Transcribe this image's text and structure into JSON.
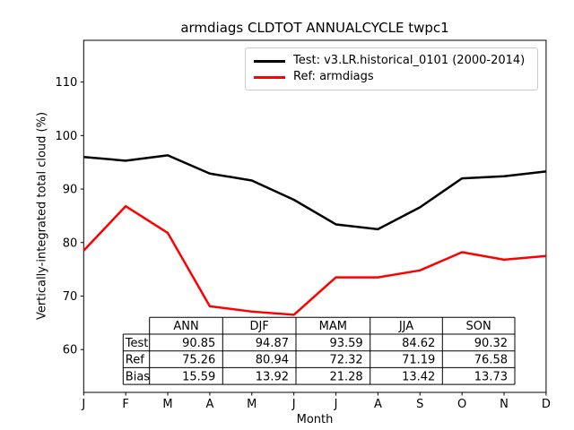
{
  "title": "armdiags CLDTOT ANNUALCYCLE twpc1",
  "axes": {
    "xlabel": "Month",
    "ylabel": "Vertically-integrated total cloud (%)"
  },
  "legend": {
    "entries": [
      {
        "label": "Test: v3.LR.historical_0101 (2000-2014)",
        "color": "#000000"
      },
      {
        "label": "Ref: armdiags",
        "color": "#ff0000"
      }
    ]
  },
  "chart_data": {
    "type": "line",
    "title": "armdiags CLDTOT ANNUALCYCLE twpc1",
    "xlabel": "Month",
    "ylabel": "Vertically-integrated total cloud (%)",
    "categories": [
      "J",
      "F",
      "M",
      "A",
      "M",
      "J",
      "J",
      "A",
      "S",
      "O",
      "N",
      "D"
    ],
    "series": [
      {
        "name": "Test: v3.LR.historical_0101 (2000-2014)",
        "color": "#000000",
        "values": [
          96.0,
          95.3,
          96.3,
          92.9,
          91.6,
          88.0,
          83.4,
          82.5,
          86.6,
          92.0,
          92.4,
          93.3
        ]
      },
      {
        "name": "Ref: armdiags",
        "color": "#ff0000",
        "values": [
          78.5,
          86.8,
          81.8,
          68.1,
          67.1,
          66.5,
          73.5,
          73.5,
          74.8,
          78.2,
          76.8,
          77.5
        ]
      }
    ],
    "ylim": [
      52.0,
      117.8
    ],
    "yticks": [
      60,
      70,
      80,
      90,
      100,
      110
    ],
    "grid": false,
    "legend_position": "upper right inside"
  },
  "summary_table": {
    "columns": [
      "ANN",
      "DJF",
      "MAM",
      "JJA",
      "SON"
    ],
    "rows": [
      {
        "label": "Test",
        "values": [
          "90.85",
          "94.87",
          "93.59",
          "84.62",
          "90.32"
        ]
      },
      {
        "label": "Ref",
        "values": [
          "75.26",
          "80.94",
          "72.32",
          "71.19",
          "76.58"
        ]
      },
      {
        "label": "Bias",
        "values": [
          "15.59",
          "13.92",
          "21.28",
          "13.42",
          "13.73"
        ]
      }
    ]
  }
}
